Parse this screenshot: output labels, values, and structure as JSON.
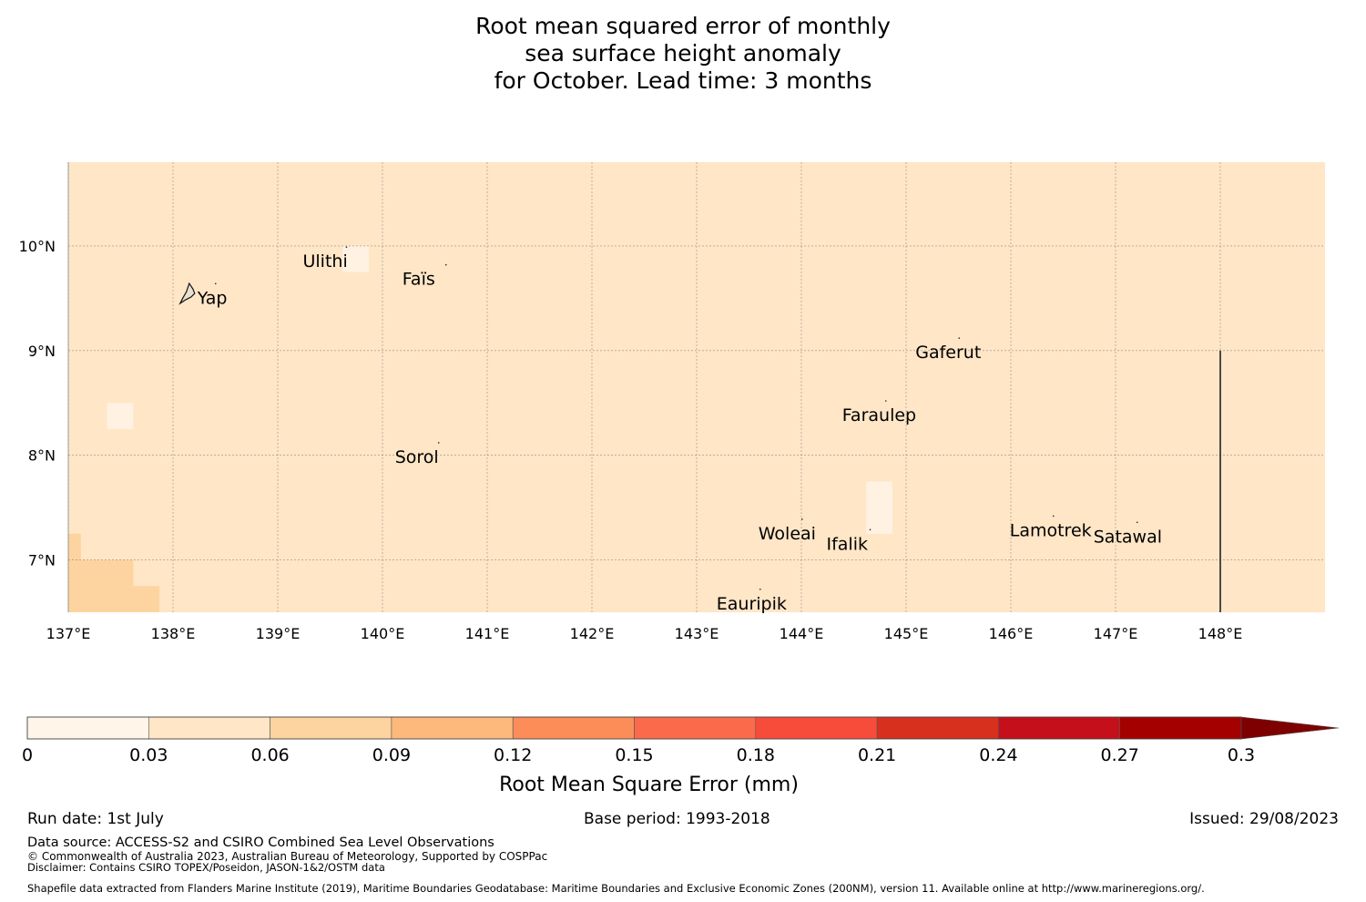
{
  "title": {
    "line1": "Root mean squared error of monthly",
    "line2": "sea surface height anomaly",
    "line3": "for October. Lead time: 3 months"
  },
  "map": {
    "lon_range": [
      137,
      149
    ],
    "lat_range": [
      6.5,
      10.8
    ],
    "lon_ticks": [
      137,
      138,
      139,
      140,
      141,
      142,
      143,
      144,
      145,
      146,
      147,
      148
    ],
    "lon_tick_labels": [
      "137°E",
      "138°E",
      "139°E",
      "140°E",
      "141°E",
      "142°E",
      "143°E",
      "144°E",
      "145°E",
      "146°E",
      "147°E",
      "148°E"
    ],
    "lat_ticks": [
      7,
      8,
      9,
      10
    ],
    "lat_tick_labels": [
      "7°N",
      "8°N",
      "9°N",
      "10°N"
    ],
    "grid": true,
    "background_color": "#fee6c7",
    "cells": [
      {
        "lon": [
          137.0,
          137.12
        ],
        "lat": [
          7.0,
          7.25
        ],
        "color": "#fdd4a0"
      },
      {
        "lon": [
          137.0,
          137.62
        ],
        "lat": [
          6.75,
          7.0
        ],
        "color": "#fdd4a0"
      },
      {
        "lon": [
          137.0,
          137.87
        ],
        "lat": [
          6.5,
          6.75
        ],
        "color": "#fdd4a0"
      },
      {
        "lon": [
          137.37,
          137.62
        ],
        "lat": [
          8.25,
          8.5
        ],
        "color": "#fff2e2"
      },
      {
        "lon": [
          139.62,
          139.87
        ],
        "lat": [
          9.75,
          10.0
        ],
        "color": "#fff2e2"
      },
      {
        "lon": [
          144.62,
          144.87
        ],
        "lat": [
          7.25,
          7.75
        ],
        "color": "#fff2e2"
      }
    ],
    "boundary_line": {
      "lon": 148.0,
      "lat": [
        6.5,
        9.0
      ]
    },
    "islands": [
      {
        "name": "Yap",
        "lon": 138.25,
        "lat": 9.5
      },
      {
        "name": "Ulithi",
        "lon": 139.5,
        "lat": 9.85
      },
      {
        "name": "Faïs",
        "lon": 140.45,
        "lat": 9.68
      },
      {
        "name": "Sorol",
        "lon": 140.38,
        "lat": 7.98
      },
      {
        "name": "Gaferut",
        "lon": 145.35,
        "lat": 8.98
      },
      {
        "name": "Faraulep",
        "lon": 144.65,
        "lat": 8.38
      },
      {
        "name": "Woleai",
        "lon": 143.85,
        "lat": 7.25
      },
      {
        "name": "Ifalik",
        "lon": 144.5,
        "lat": 7.15
      },
      {
        "name": "Lamotrek",
        "lon": 146.25,
        "lat": 7.28
      },
      {
        "name": "Satawal",
        "lon": 147.05,
        "lat": 7.22
      },
      {
        "name": "Eauripik",
        "lon": 143.45,
        "lat": 6.58
      }
    ]
  },
  "colorbar": {
    "label": "Root Mean Square Error (mm)",
    "ticks": [
      0,
      0.03,
      0.06,
      0.09,
      0.12,
      0.15,
      0.18,
      0.21,
      0.24,
      0.27,
      0.3
    ],
    "tick_labels": [
      "0",
      "0.03",
      "0.06",
      "0.09",
      "0.12",
      "0.15",
      "0.18",
      "0.21",
      "0.24",
      "0.27",
      "0.3"
    ],
    "colors": [
      "#fff5e8",
      "#fee6c7",
      "#fdd4a0",
      "#fdb97c",
      "#fc8d59",
      "#fb6a4a",
      "#f84c3a",
      "#d7301f",
      "#c5101b",
      "#a50000"
    ],
    "extend_color": "#7f0000"
  },
  "footer": {
    "run_date": "Run date: 1st July",
    "base_period": "Base period: 1993-2018",
    "issued": "Issued: 29/08/2023",
    "data_source": "Data source: ACCESS-S2 and CSIRO Combined Sea Level Observations",
    "copyright": "© Commonwealth of Australia 2023, Australian Bureau of Meteorology, Supported by COSPPac",
    "disclaimer": "Disclaimer: Contains CSIRO TOPEX/Poseidon, JASON-1&2/OSTM data",
    "shapefile": "Shapefile data extracted from Flanders Marine Institute (2019), Maritime Boundaries Geodatabase: Maritime Boundaries and Exclusive Economic Zones (200NM), version 11. Available online at http://www.marineregions.org/."
  }
}
